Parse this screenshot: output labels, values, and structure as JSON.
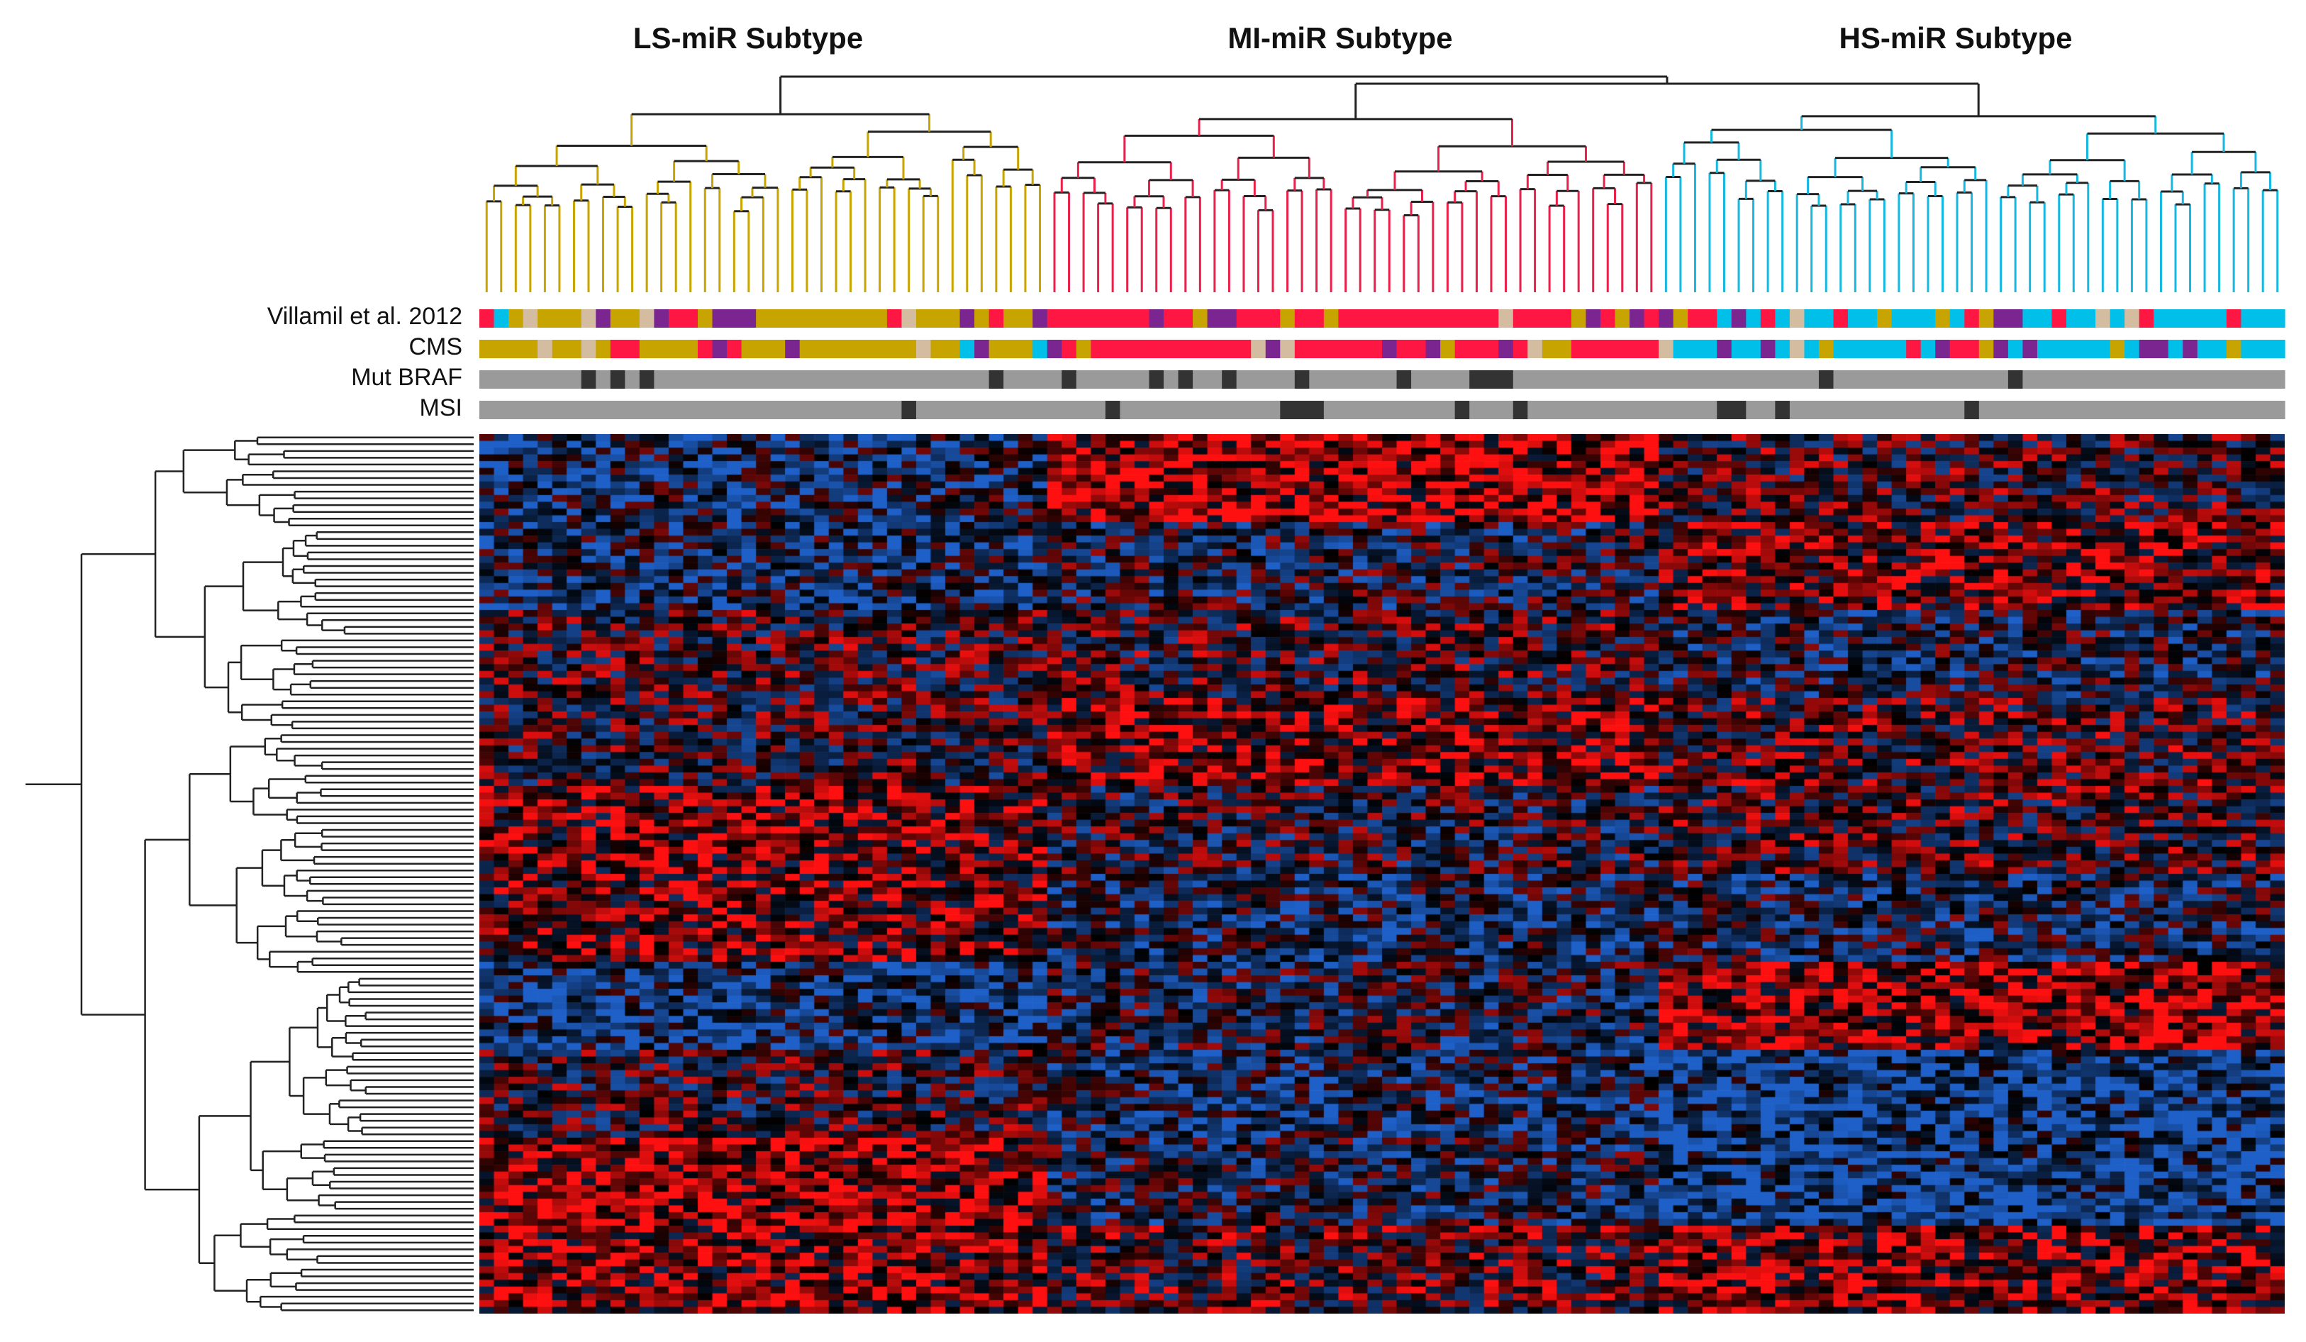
{
  "chart_data": {
    "type": "heatmap",
    "title": "",
    "column_groups": [
      {
        "name": "LS-miR Subtype",
        "branch_color": "#c8a400"
      },
      {
        "name": "MI-miR Subtype",
        "branch_color": "#e8204a"
      },
      {
        "name": "HS-miR Subtype",
        "branch_color": "#14b8e0"
      }
    ],
    "annotation_tracks": [
      {
        "name": "Villamil et al. 2012"
      },
      {
        "name": "CMS"
      },
      {
        "name": "Mut BRAF"
      },
      {
        "name": "MSI"
      }
    ],
    "annotation_colors": {
      "gold": "#c8a400",
      "red": "#ff1744",
      "purple": "#7b2590",
      "cyan": "#00c0ea",
      "tan": "#d4bca0",
      "gray": "#9a9a9a",
      "dark": "#333333"
    },
    "heatmap_colors": {
      "low": "#1e60c8",
      "mid": "#000000",
      "high": "#ff1010"
    },
    "n_columns": 124,
    "n_rows": 130,
    "group_sizes": [
      39,
      42,
      43
    ]
  }
}
